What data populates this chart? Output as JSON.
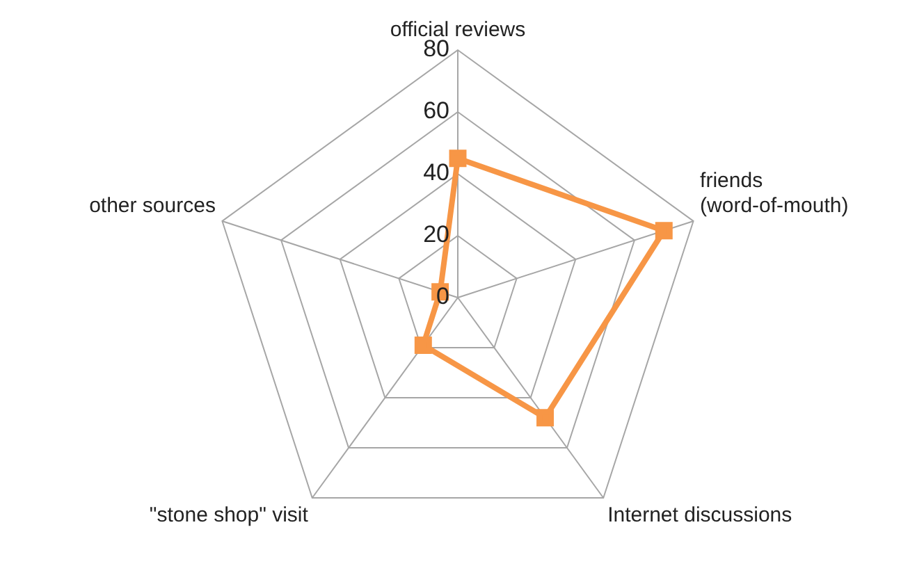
{
  "chart_data": {
    "type": "radar",
    "categories": [
      "official reviews",
      "friends (word-of-mouth)",
      "Internet discussions",
      "\"stone shop\" visit",
      "other sources"
    ],
    "series": [
      {
        "color": "#f79646",
        "values": [
          45,
          70,
          48,
          19,
          6
        ]
      }
    ],
    "ylim": [
      0,
      80
    ],
    "yticks": [
      0,
      20,
      40,
      60,
      80
    ],
    "grid": true,
    "legend": false,
    "marker": "square",
    "line_style": "solid"
  }
}
